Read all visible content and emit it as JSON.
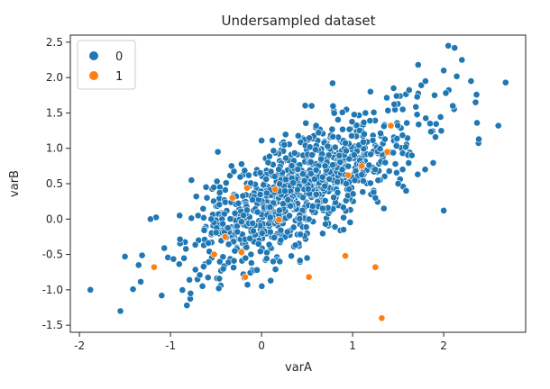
{
  "chart_data": {
    "type": "scatter",
    "title": "Undersampled dataset",
    "xlabel": "varA",
    "ylabel": "varB",
    "xlim": [
      -2.1,
      2.9
    ],
    "ylim": [
      -1.6,
      2.6
    ],
    "xticks": [
      "-2",
      "-1",
      "0",
      "1",
      "2"
    ],
    "yticks": [
      "-1.5",
      "-1.0",
      "-0.5",
      "0.0",
      "0.5",
      "1.0",
      "1.5",
      "2.0",
      "2.5"
    ],
    "grid": false,
    "legend": {
      "placement": "top-left",
      "entries": [
        "0",
        "1"
      ]
    },
    "colors": {
      "0": "#1f77b4",
      "1": "#ff7f0e"
    },
    "series": [
      {
        "name": "0",
        "cluster": {
          "count": 950,
          "mean": [
            0.45,
            0.42
          ],
          "std": [
            0.62,
            0.55
          ],
          "corr": 0.72,
          "seed": 7
        },
        "points": [
          [
            -1.88,
            -1.0
          ],
          [
            -1.55,
            -1.3
          ],
          [
            -1.5,
            -0.53
          ],
          [
            -1.35,
            -0.65
          ],
          [
            -1.22,
            0.0
          ],
          [
            -0.82,
            -1.22
          ],
          [
            -0.78,
            -1.05
          ],
          [
            -0.47,
            -0.98
          ],
          [
            -0.2,
            -0.78
          ],
          [
            0.5,
            -0.55
          ],
          [
            -0.77,
            0.55
          ],
          [
            -0.48,
            0.95
          ],
          [
            -0.33,
            0.75
          ],
          [
            0.25,
            1.05
          ],
          [
            0.55,
            1.6
          ],
          [
            0.78,
            1.92
          ],
          [
            1.55,
            1.55
          ],
          [
            1.72,
            2.18
          ],
          [
            1.8,
            1.95
          ],
          [
            2.0,
            2.1
          ],
          [
            2.05,
            2.45
          ],
          [
            2.12,
            2.42
          ],
          [
            2.2,
            2.25
          ],
          [
            2.3,
            1.95
          ],
          [
            2.35,
            1.65
          ],
          [
            2.6,
            1.32
          ],
          [
            2.68,
            1.93
          ],
          [
            2.0,
            0.12
          ],
          [
            1.5,
            0.5
          ],
          [
            1.25,
            0.3
          ],
          [
            0.9,
            -0.15
          ],
          [
            0.2,
            -0.6
          ],
          [
            -0.05,
            -0.72
          ],
          [
            -0.6,
            0.3
          ],
          [
            -0.9,
            0.05
          ],
          [
            1.65,
            0.9
          ],
          [
            1.85,
            1.35
          ],
          [
            2.1,
            1.6
          ],
          [
            1.9,
            1.75
          ],
          [
            1.45,
            1.85
          ]
        ]
      },
      {
        "name": "1",
        "points": [
          [
            -1.18,
            -0.68
          ],
          [
            -0.32,
            0.3
          ],
          [
            -0.16,
            0.44
          ],
          [
            0.15,
            0.42
          ],
          [
            0.19,
            -0.01
          ],
          [
            -0.52,
            -0.5
          ],
          [
            -0.22,
            -0.47
          ],
          [
            -0.18,
            -0.82
          ],
          [
            0.52,
            -0.82
          ],
          [
            0.92,
            -0.52
          ],
          [
            1.25,
            -0.68
          ],
          [
            1.32,
            -1.4
          ],
          [
            1.1,
            0.75
          ],
          [
            1.38,
            0.95
          ],
          [
            1.42,
            1.32
          ],
          [
            0.95,
            0.62
          ],
          [
            -0.4,
            -0.25
          ]
        ]
      }
    ]
  }
}
